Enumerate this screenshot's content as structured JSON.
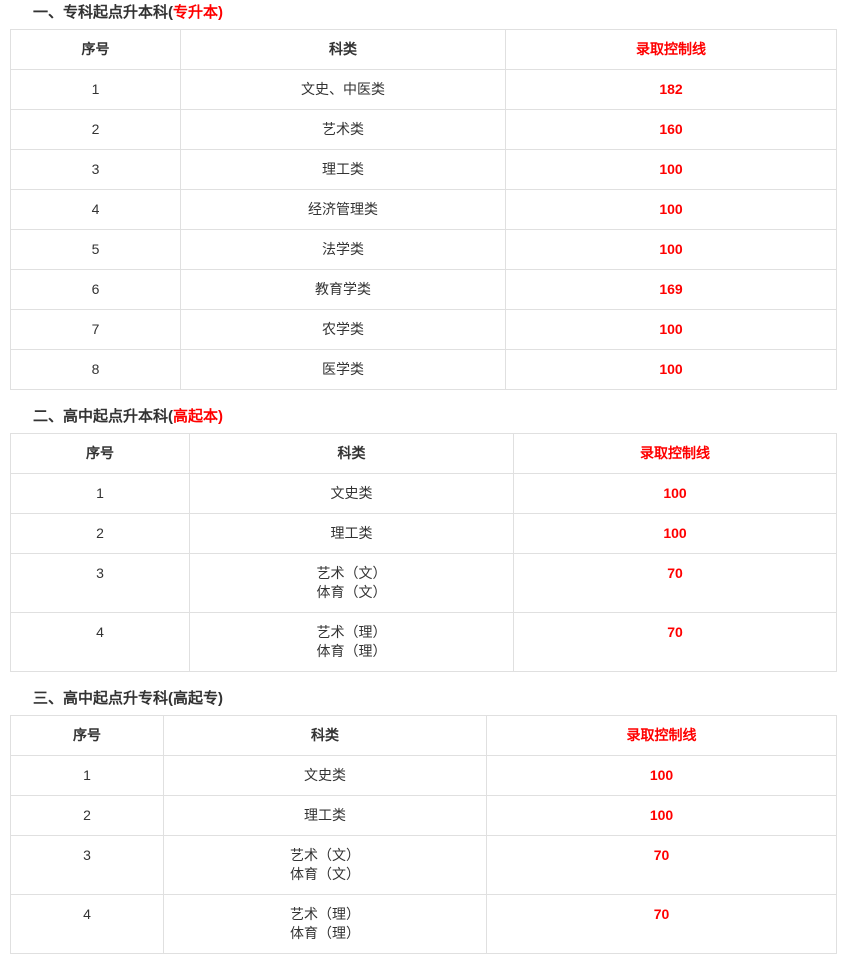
{
  "colors": {
    "accent_red": "#ff0000",
    "text": "#333333",
    "border": "#e0e0e0"
  },
  "sections": [
    {
      "heading": {
        "prefix": "一、专科起点升本科(",
        "highlight": "专升本)"
      },
      "columns": {
        "no": "序号",
        "category": "科类",
        "score": "录取控制线"
      },
      "rows": [
        {
          "no": "1",
          "category": "文史、中医类",
          "score": "182"
        },
        {
          "no": "2",
          "category": "艺术类",
          "score": "160"
        },
        {
          "no": "3",
          "category": "理工类",
          "score": "100"
        },
        {
          "no": "4",
          "category": "经济管理类",
          "score": "100"
        },
        {
          "no": "5",
          "category": "法学类",
          "score": "100"
        },
        {
          "no": "6",
          "category": "教育学类",
          "score": "169"
        },
        {
          "no": "7",
          "category": "农学类",
          "score": "100"
        },
        {
          "no": "8",
          "category": "医学类",
          "score": "100"
        }
      ]
    },
    {
      "heading": {
        "prefix": "二、高中起点升本科(",
        "highlight": "高起本)"
      },
      "columns": {
        "no": "序号",
        "category": "科类",
        "score": "录取控制线"
      },
      "rows": [
        {
          "no": "1",
          "category": "文史类",
          "score": "100"
        },
        {
          "no": "2",
          "category": "理工类",
          "score": "100"
        },
        {
          "no": "3",
          "category": "艺术（文）\n体育（文）",
          "score": "70"
        },
        {
          "no": "4",
          "category": "艺术（理）\n体育（理）",
          "score": "70"
        }
      ]
    },
    {
      "heading": {
        "prefix": "三、高中起点升专科(高起专)",
        "highlight": ""
      },
      "columns": {
        "no": "序号",
        "category": "科类",
        "score": "录取控制线"
      },
      "rows": [
        {
          "no": "1",
          "category": "文史类",
          "score": "100"
        },
        {
          "no": "2",
          "category": "理工类",
          "score": "100"
        },
        {
          "no": "3",
          "category": "艺术（文）\n体育（文）",
          "score": "70"
        },
        {
          "no": "4",
          "category": "艺术（理）\n体育（理）",
          "score": "70"
        }
      ]
    }
  ]
}
